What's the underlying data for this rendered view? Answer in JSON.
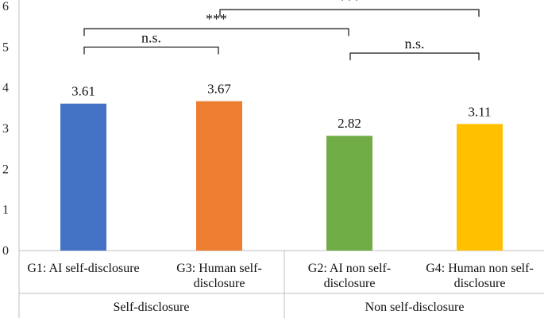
{
  "chart_data": {
    "type": "bar",
    "title": "",
    "xlabel": "",
    "ylabel": "",
    "ylim": [
      0,
      6
    ],
    "yticks": [
      0,
      1,
      2,
      3,
      4,
      5,
      6
    ],
    "grid": false,
    "categories": [
      {
        "lines": [
          "G1: AI self-disclosure"
        ],
        "value": 3.61,
        "label": "3.61",
        "color": "#4472C4"
      },
      {
        "lines": [
          "G3: Human self-",
          "disclosure"
        ],
        "value": 3.67,
        "label": "3.67",
        "color": "#ED7D31"
      },
      {
        "lines": [
          "G2: AI non self-",
          "disclosure"
        ],
        "value": 2.82,
        "label": "2.82",
        "color": "#70AD47"
      },
      {
        "lines": [
          "G4: Human non self-",
          "disclosure"
        ],
        "value": 3.11,
        "label": "3.11",
        "color": "#FFC000"
      }
    ],
    "groups": [
      {
        "label": "Self-disclosure",
        "members": [
          0,
          1
        ]
      },
      {
        "label": "Non self-disclosure",
        "members": [
          2,
          3
        ]
      }
    ],
    "significance": [
      {
        "from": 0,
        "to": 1,
        "label": "n.s.",
        "level": 5.0
      },
      {
        "from": 2,
        "to": 3,
        "label": "n.s.",
        "level": 4.85
      },
      {
        "from": 0,
        "to": 2,
        "label": "***",
        "level": 5.45
      },
      {
        "from": 1,
        "to": 3,
        "label": "***",
        "level": 5.92
      }
    ]
  }
}
